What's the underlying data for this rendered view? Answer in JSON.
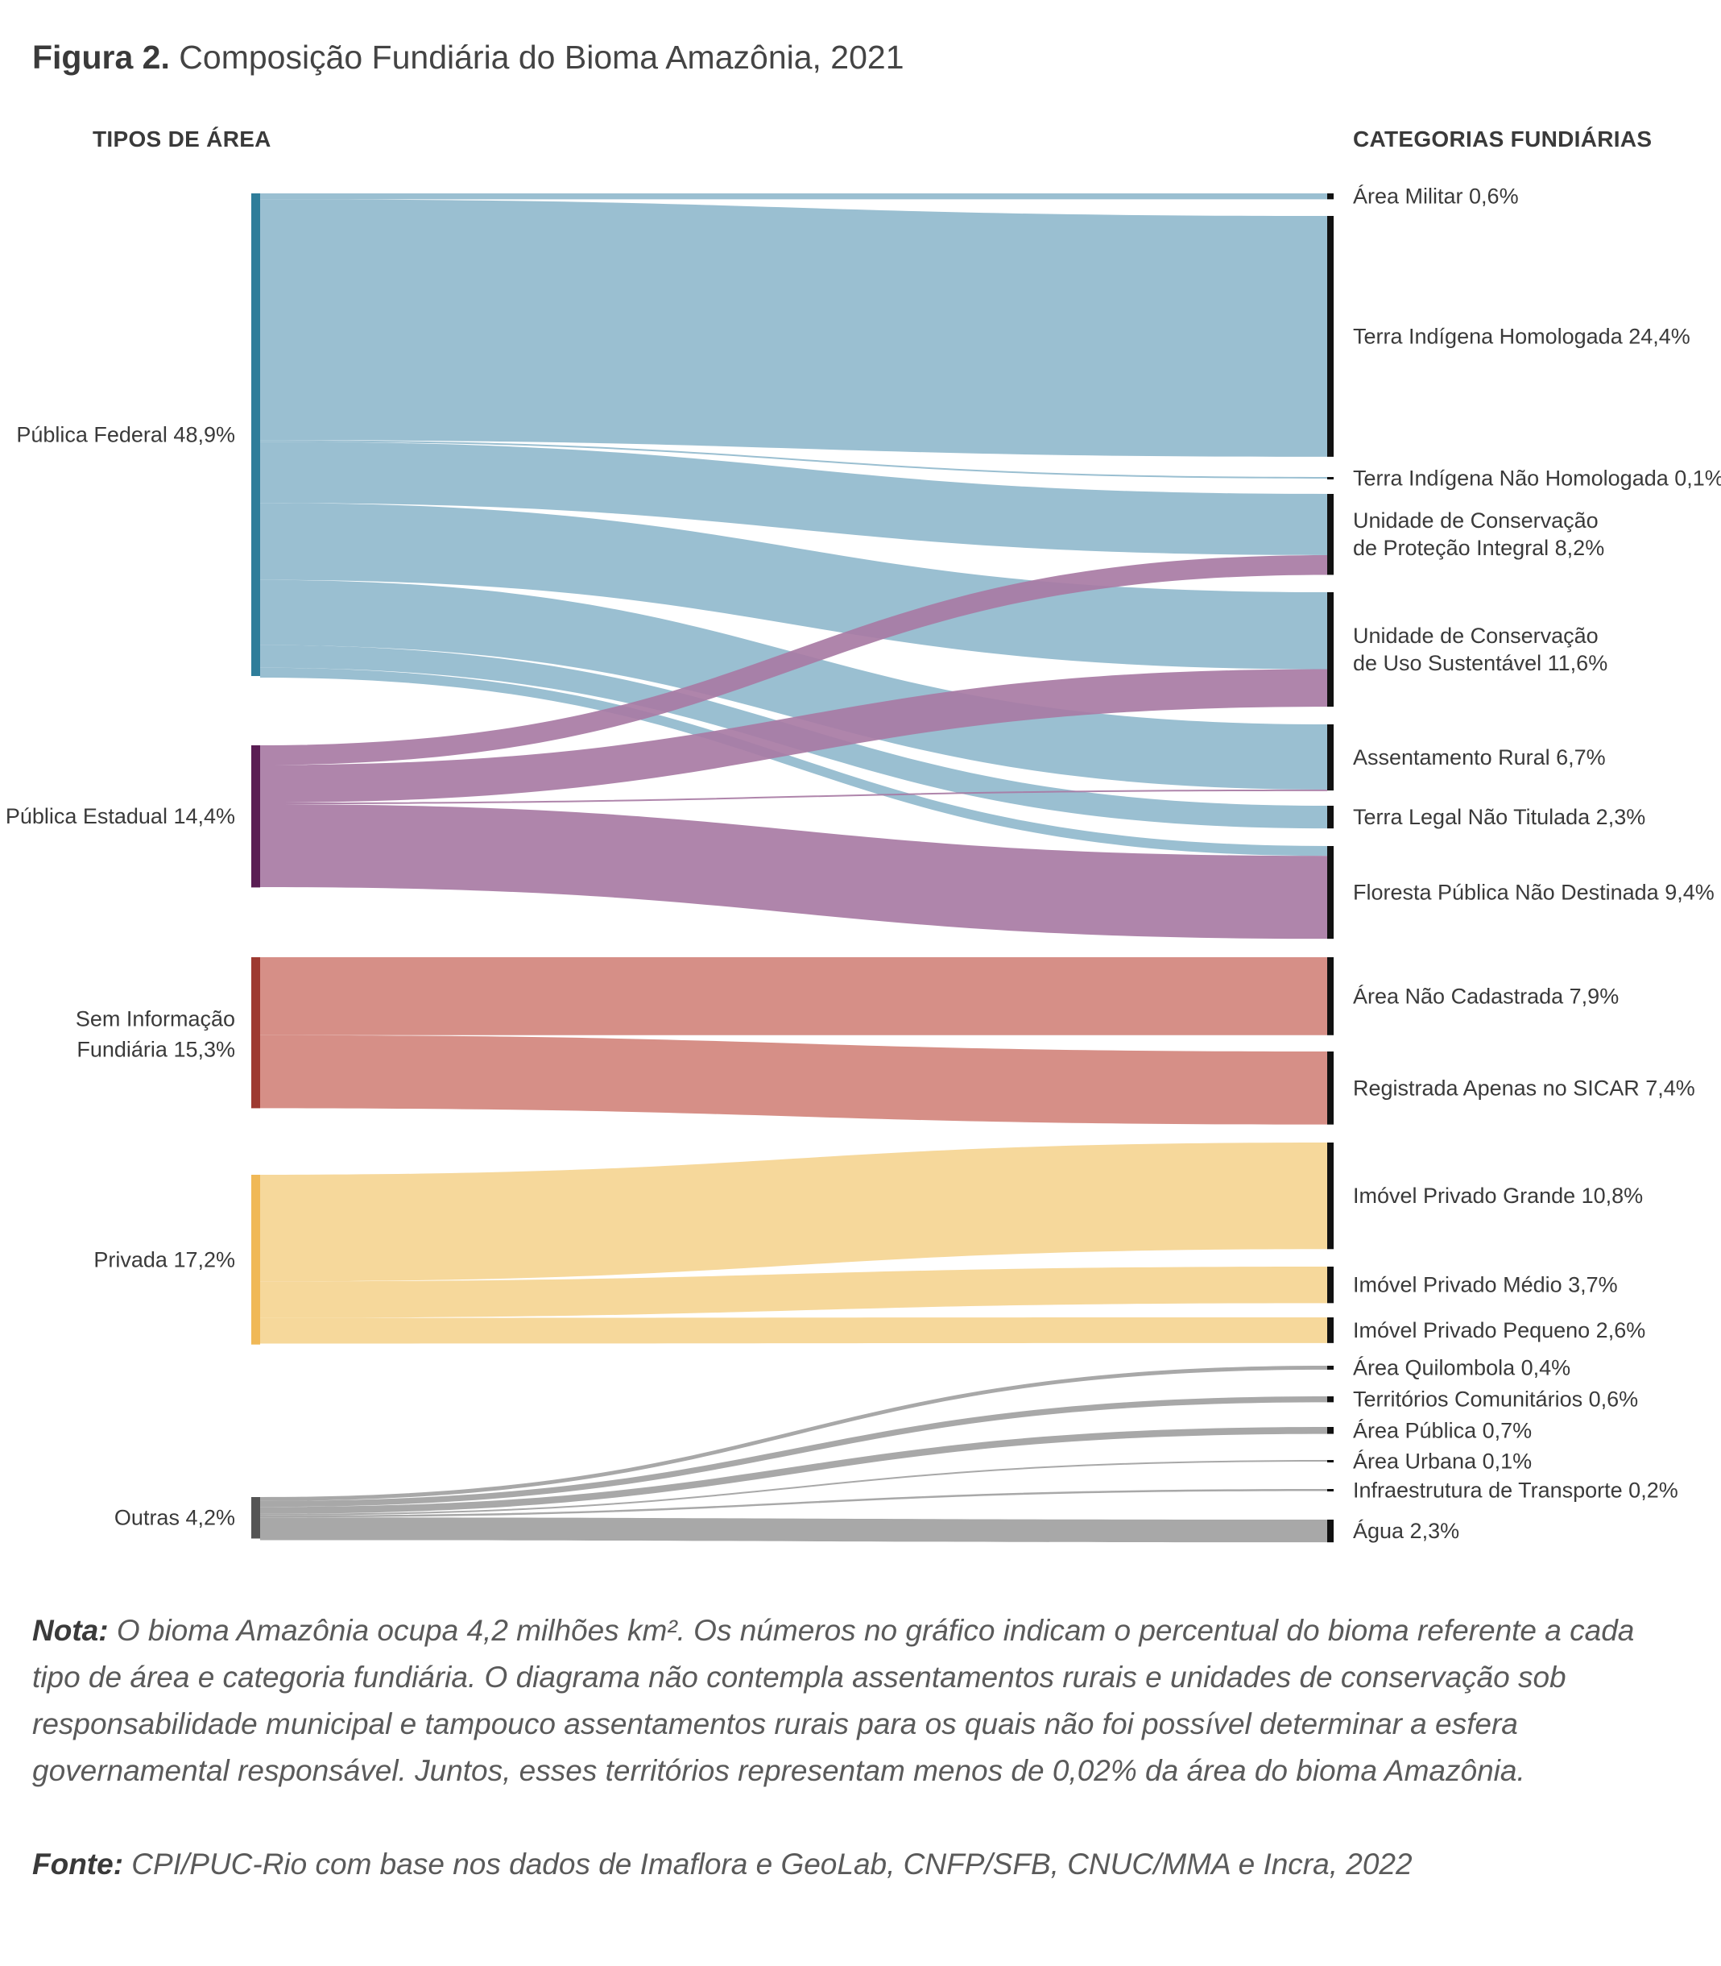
{
  "figure": {
    "label": "Figura 2.",
    "title": "Composição Fundiária do Bioma Amazônia, 2021"
  },
  "headers": {
    "left": "TIPOS DE ÁREA",
    "right": "CATEGORIAS FUNDIÁRIAS"
  },
  "colors": {
    "federal_node": "#2e7d9a",
    "federal_flow": "#9abfd1",
    "estadual_node": "#5a1d54",
    "estadual_flow": "#a87ba4",
    "seminfo_node": "#9e3a31",
    "seminfo_flow": "#d68f87",
    "privada_node": "#f0b856",
    "privada_flow": "#f6d89b",
    "outras_node": "#555555",
    "outras_flow": "#a8a8a8",
    "target_node": "#111111"
  },
  "chart_data": {
    "type": "sankey",
    "unit": "% do bioma",
    "sources": [
      {
        "id": "federal",
        "label": "Pública Federal 48,9%",
        "value": 48.9
      },
      {
        "id": "estadual",
        "label": "Pública Estadual 14,4%",
        "value": 14.4
      },
      {
        "id": "seminfo",
        "label": "Sem Informação Fundiária 15,3%",
        "value": 15.3
      },
      {
        "id": "privada",
        "label": "Privada 17,2%",
        "value": 17.2
      },
      {
        "id": "outras",
        "label": "Outras 4,2%",
        "value": 4.2
      }
    ],
    "targets": [
      {
        "id": "militar",
        "label": "Área Militar 0,6%",
        "value": 0.6
      },
      {
        "id": "tih",
        "label": "Terra Indígena Homologada 24,4%",
        "value": 24.4
      },
      {
        "id": "tinh",
        "label": "Terra Indígena Não Homologada 0,1%",
        "value": 0.1
      },
      {
        "id": "ucpi",
        "label": "Unidade de Conservação de Proteção Integral 8,2%",
        "value": 8.2
      },
      {
        "id": "ucus",
        "label": "Unidade de Conservação de Uso Sustentável 11,6%",
        "value": 11.6
      },
      {
        "id": "assent",
        "label": "Assentamento Rural 6,7%",
        "value": 6.7
      },
      {
        "id": "tlnt",
        "label": "Terra Legal Não Titulada 2,3%",
        "value": 2.3
      },
      {
        "id": "fpnd",
        "label": "Floresta Pública Não Destinada 9,4%",
        "value": 9.4
      },
      {
        "id": "anc",
        "label": "Área Não Cadastrada 7,9%",
        "value": 7.9
      },
      {
        "id": "sicar",
        "label": "Registrada Apenas no SICAR 7,4%",
        "value": 7.4
      },
      {
        "id": "ipg",
        "label": "Imóvel Privado Grande 10,8%",
        "value": 10.8
      },
      {
        "id": "ipm",
        "label": "Imóvel Privado Médio 3,7%",
        "value": 3.7
      },
      {
        "id": "ipp",
        "label": "Imóvel Privado Pequeno 2,6%",
        "value": 2.6
      },
      {
        "id": "quil",
        "label": "Área Quilombola 0,4%",
        "value": 0.4
      },
      {
        "id": "terrcom",
        "label": "Territórios Comunitários 0,6%",
        "value": 0.6
      },
      {
        "id": "areapub",
        "label": "Área Pública 0,7%",
        "value": 0.7
      },
      {
        "id": "urbana",
        "label": "Área Urbana 0,1%",
        "value": 0.1
      },
      {
        "id": "infra",
        "label": "Infraestrutura de Transporte 0,2%",
        "value": 0.2
      },
      {
        "id": "agua",
        "label": "Água 2,3%",
        "value": 2.3
      }
    ],
    "links": [
      {
        "source": "federal",
        "target": "militar",
        "value": 0.6
      },
      {
        "source": "federal",
        "target": "tih",
        "value": 24.4
      },
      {
        "source": "federal",
        "target": "tinh",
        "value": 0.1
      },
      {
        "source": "federal",
        "target": "ucpi",
        "value": 6.2
      },
      {
        "source": "federal",
        "target": "ucus",
        "value": 7.8
      },
      {
        "source": "federal",
        "target": "assent",
        "value": 6.6
      },
      {
        "source": "federal",
        "target": "tlnt",
        "value": 2.3
      },
      {
        "source": "federal",
        "target": "fpnd",
        "value": 1.0
      },
      {
        "source": "estadual",
        "target": "ucpi",
        "value": 2.0
      },
      {
        "source": "estadual",
        "target": "ucus",
        "value": 3.8
      },
      {
        "source": "estadual",
        "target": "assent",
        "value": 0.1
      },
      {
        "source": "estadual",
        "target": "fpnd",
        "value": 8.4
      },
      {
        "source": "seminfo",
        "target": "anc",
        "value": 7.9
      },
      {
        "source": "seminfo",
        "target": "sicar",
        "value": 7.4
      },
      {
        "source": "privada",
        "target": "ipg",
        "value": 10.8
      },
      {
        "source": "privada",
        "target": "ipm",
        "value": 3.7
      },
      {
        "source": "privada",
        "target": "ipp",
        "value": 2.6
      },
      {
        "source": "outras",
        "target": "quil",
        "value": 0.4
      },
      {
        "source": "outras",
        "target": "terrcom",
        "value": 0.6
      },
      {
        "source": "outras",
        "target": "areapub",
        "value": 0.7
      },
      {
        "source": "outras",
        "target": "urbana",
        "value": 0.1
      },
      {
        "source": "outras",
        "target": "infra",
        "value": 0.2
      },
      {
        "source": "outras",
        "target": "agua",
        "value": 2.3
      }
    ]
  },
  "note": {
    "label": "Nota:",
    "text": " O bioma Amazônia ocupa 4,2 milhões km². Os números no gráfico indicam o percentual do bioma referente a cada tipo de área e categoria fundiária. O diagrama não contempla assentamentos rurais e unidades de conservação sob responsabilidade municipal e tampouco assentamentos rurais para os quais não foi possível determinar a esfera governamental responsável. Juntos, esses territórios representam menos de 0,02% da área do bioma Amazônia."
  },
  "source": {
    "label": "Fonte:",
    "text": " CPI/PUC-Rio com base nos dados de Imaflora e GeoLab, CNFP/SFB, CNUC/MMA e Incra, 2022"
  }
}
